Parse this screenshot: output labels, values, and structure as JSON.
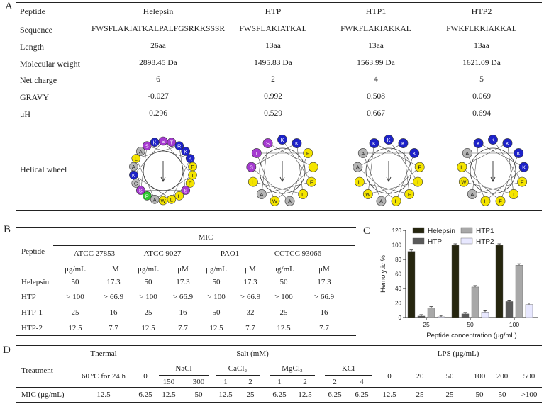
{
  "panel_labels": {
    "a": "A",
    "b": "B",
    "c": "C",
    "d": "D"
  },
  "table_a": {
    "headers": [
      "Peptide",
      "Helepsin",
      "HTP",
      "HTP1",
      "HTP2"
    ],
    "rows": [
      {
        "label": "Sequence",
        "values": [
          "FWSFLAKIATKALPALFGSRKKSSSR",
          "FWSFLAKIATKAL",
          "FWKFLAKIAKKAL",
          "FWKFLKKIAKKAL"
        ]
      },
      {
        "label": "Length",
        "values": [
          "26aa",
          "13aa",
          "13aa",
          "13aa"
        ]
      },
      {
        "label": "Molecular weight",
        "values": [
          "2898.45 Da",
          "1495.83 Da",
          "1563.99 Da",
          "1621.09 Da"
        ]
      },
      {
        "label": "Net charge",
        "values": [
          "6",
          "2",
          "4",
          "5"
        ]
      },
      {
        "label": "GRAVY",
        "values": [
          "-0.027",
          "0.992",
          "0.508",
          "0.069"
        ]
      },
      {
        "label": "μH",
        "values": [
          "0.296",
          "0.529",
          "0.667",
          "0.694"
        ]
      }
    ],
    "helical_wheel_label": "Helical wheel",
    "wheel_colors": {
      "K": "#1d22c8",
      "R": "#1d22c8",
      "S": "#a53ad0",
      "T": "#a53ad0",
      "G": "#c0c0c0",
      "A": "#b5b5b5",
      "F": "#f4e400",
      "L": "#f4e400",
      "I": "#f4e400",
      "W": "#f4e400",
      "P": "#2ec82e"
    },
    "wheels": [
      {
        "name": "Helepsin",
        "ring": [
          "S",
          "T",
          "R",
          "K",
          "K",
          "F",
          "I",
          "F",
          "S",
          "L",
          "L",
          "W",
          "A",
          "P",
          "S",
          "G",
          "K",
          "A",
          "L",
          "A",
          "S",
          "K"
        ]
      },
      {
        "name": "HTP",
        "ring": [
          "K",
          "K",
          "F",
          "I",
          "F",
          "L",
          "A",
          "W",
          "A",
          "L",
          "S",
          "T",
          "S"
        ]
      },
      {
        "name": "HTP1",
        "ring": [
          "K",
          "K",
          "K",
          "F",
          "I",
          "F",
          "L",
          "A",
          "W",
          "L",
          "A",
          "A",
          "K"
        ]
      },
      {
        "name": "HTP2",
        "ring": [
          "K",
          "K",
          "K",
          "K",
          "F",
          "I",
          "F",
          "L",
          "A",
          "W",
          "L",
          "A",
          "K"
        ]
      }
    ]
  },
  "table_b": {
    "peptide_header": "Peptide",
    "mic_header": "MIC",
    "strains": [
      "ATCC 27853",
      "ATCC 9027",
      "PAO1",
      "CCTCC 93066"
    ],
    "units": [
      "μg/mL",
      "μM"
    ],
    "rows": [
      {
        "label": "Helepsin",
        "values": [
          "50",
          "17.3",
          "50",
          "17.3",
          "50",
          "17.3",
          "50",
          "17.3"
        ]
      },
      {
        "label": "HTP",
        "values": [
          "> 100",
          "> 66.9",
          "> 100",
          "> 66.9",
          "> 100",
          "> 66.9",
          "> 100",
          "> 66.9"
        ]
      },
      {
        "label": "HTP-1",
        "values": [
          "25",
          "16",
          "25",
          "16",
          "50",
          "32",
          "25",
          "16"
        ]
      },
      {
        "label": "HTP-2",
        "values": [
          "12.5",
          "7.7",
          "12.5",
          "7.7",
          "12.5",
          "7.7",
          "12.5",
          "7.7"
        ]
      }
    ]
  },
  "chart_data": {
    "type": "bar",
    "ylabel": "Hemolytic %",
    "xlabel": "Peptide concentration (μg/mL)",
    "ylim": [
      0,
      120
    ],
    "yticks": [
      "0",
      "20",
      "40",
      "60",
      "80",
      "100",
      "120"
    ],
    "categories": [
      "25",
      "50",
      "100"
    ],
    "series": [
      {
        "name": "Helepsin",
        "color": "#26260f",
        "values": [
          91,
          99.5,
          99.5
        ]
      },
      {
        "name": "HTP",
        "color": "#5a5a5a",
        "values": [
          2,
          5,
          22
        ]
      },
      {
        "name": "HTP1",
        "color": "#a8a8a8",
        "values": [
          13,
          42,
          72
        ]
      },
      {
        "name": "HTP2",
        "color": "#e8e8ff",
        "values": [
          1,
          7.5,
          18
        ]
      }
    ],
    "legend": "top"
  },
  "table_d": {
    "treatment_label": "Treatment",
    "thermal_header": "Thermal",
    "thermal_condition": "60 ºC for 24 h",
    "salt_header": "Salt (mM)",
    "lps_header": "LPS (μg/mL)",
    "salt_zero": "0",
    "salts": [
      {
        "name": "NaCl",
        "concs": [
          "150",
          "300"
        ]
      },
      {
        "name": "CaCl₂",
        "concs": [
          "1",
          "2"
        ]
      },
      {
        "name": "MgCl₂",
        "concs": [
          "1",
          "2"
        ]
      },
      {
        "name": "KCl",
        "concs": [
          "2",
          "4"
        ]
      }
    ],
    "lps_concs": [
      "0",
      "20",
      "50",
      "100",
      "200",
      "500"
    ],
    "mic_label": "MIC (μg/mL)",
    "mic_values": [
      "12.5",
      "6.25",
      "12.5",
      "50",
      "12.5",
      "25",
      "6.25",
      "12.5",
      "6.25",
      "6.25",
      "12.5",
      "25",
      "25",
      "50",
      "50",
      ">100"
    ]
  }
}
